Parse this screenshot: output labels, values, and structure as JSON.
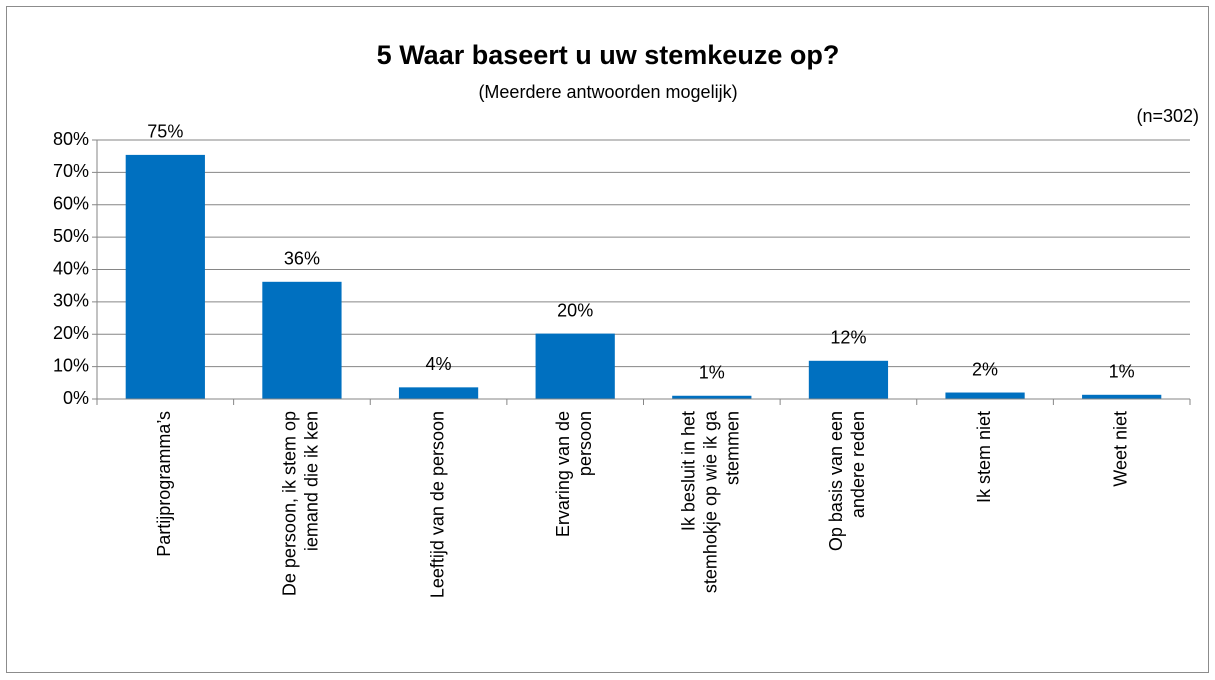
{
  "chart_data": {
    "type": "bar",
    "title": "5 Waar baseert u uw stemkeuze op?",
    "subtitle": "(Meerdere antwoorden mogelijk)",
    "annotation": "(n=302)",
    "categories": [
      [
        "Partijprogramma’s"
      ],
      [
        "De persoon, ik stem op",
        "iemand die ik ken"
      ],
      [
        "Leeftijd van de persoon"
      ],
      [
        "Ervaring van de",
        "persoon"
      ],
      [
        "Ik besluit in het",
        "stemhokje op wie ik ga",
        "stemmen"
      ],
      [
        "Op basis van een",
        "andere reden"
      ],
      [
        "Ik stem niet"
      ],
      [
        "Weet niet"
      ]
    ],
    "values": [
      75.4,
      36.2,
      3.6,
      20.2,
      1.0,
      11.8,
      2.0,
      1.3
    ],
    "value_labels": [
      "75%",
      "36%",
      "4%",
      "20%",
      "1%",
      "12%",
      "2%",
      "1%"
    ],
    "color": "#0070c0",
    "ylim": [
      0,
      80
    ],
    "yticks": [
      {
        "value": 0,
        "label": "0%"
      },
      {
        "value": 10,
        "label": "10%"
      },
      {
        "value": 20,
        "label": "20%"
      },
      {
        "value": 30,
        "label": "30%"
      },
      {
        "value": 40,
        "label": "40%"
      },
      {
        "value": 50,
        "label": "50%"
      },
      {
        "value": 60,
        "label": "60%"
      },
      {
        "value": 70,
        "label": "70%"
      },
      {
        "value": 80,
        "label": "80%"
      }
    ],
    "grid": true
  }
}
